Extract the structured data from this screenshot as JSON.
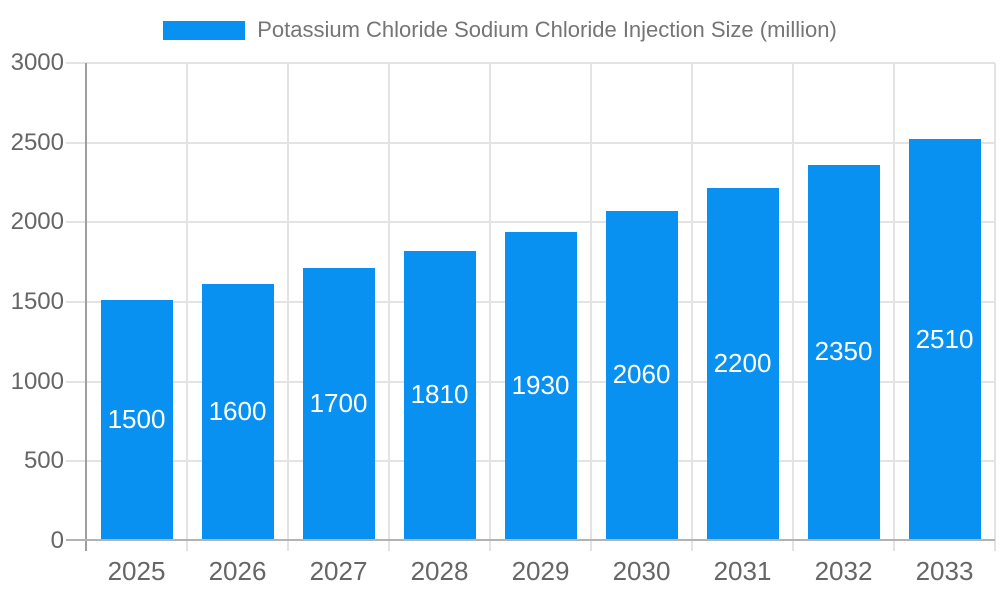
{
  "chart_data": {
    "type": "bar",
    "title": "Potassium Chloride Sodium Chloride Injection Size (million)",
    "legend_position": "top",
    "categories": [
      "2025",
      "2026",
      "2027",
      "2028",
      "2029",
      "2030",
      "2031",
      "2032",
      "2033"
    ],
    "values": [
      1500,
      1600,
      1700,
      1810,
      1930,
      2060,
      2200,
      2350,
      2510
    ],
    "xlabel": "",
    "ylabel": "",
    "ylim": [
      0,
      3000
    ],
    "yticks": [
      0,
      500,
      1000,
      1500,
      2000,
      2500,
      3000
    ],
    "grid": true,
    "bar_value_labels_inside": true,
    "colors": {
      "bar": "#0991f2",
      "bar_label": "#ffffff",
      "title_text": "#757575",
      "axis_label": "#666666",
      "gridline": "#e3e3e3",
      "axis_line": "#9e9e9e",
      "baseline": "#b3b3b3",
      "background": "#ffffff"
    }
  }
}
